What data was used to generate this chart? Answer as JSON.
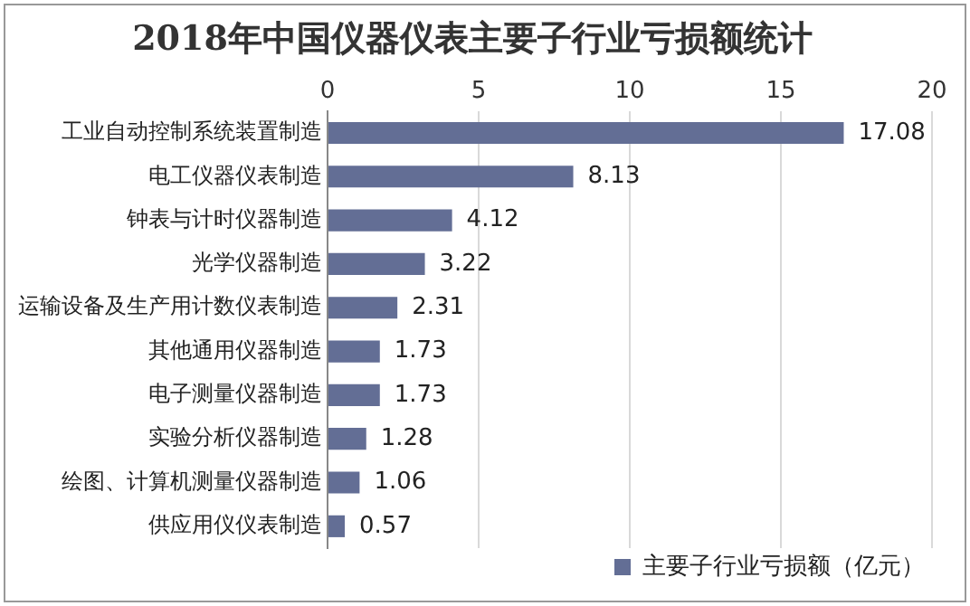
{
  "chart_data": {
    "type": "bar",
    "orientation": "horizontal",
    "title": "2018年中国仪器仪表主要子行业亏损额统计",
    "categories": [
      "工业自动控制系统装置制造",
      "电工仪器仪表制造",
      "钟表与计时仪器制造",
      "光学仪器制造",
      "运输设备及生产用计数仪表制造",
      "其他通用仪器制造",
      "电子测量仪器制造",
      "实验分析仪器制造",
      "绘图、计算机测量仪器制造",
      "供应用仪仪表制造"
    ],
    "series": [
      {
        "name": "主要子行业亏损额（亿元）",
        "color": "#636e95",
        "values": [
          17.08,
          8.13,
          4.12,
          3.22,
          2.31,
          1.73,
          1.73,
          1.28,
          1.06,
          0.57
        ]
      }
    ],
    "xlim": [
      0,
      20
    ],
    "xticks": [
      0,
      5,
      10,
      15,
      20
    ],
    "grid": "x",
    "legend": "bottom right",
    "data_labels": true
  }
}
